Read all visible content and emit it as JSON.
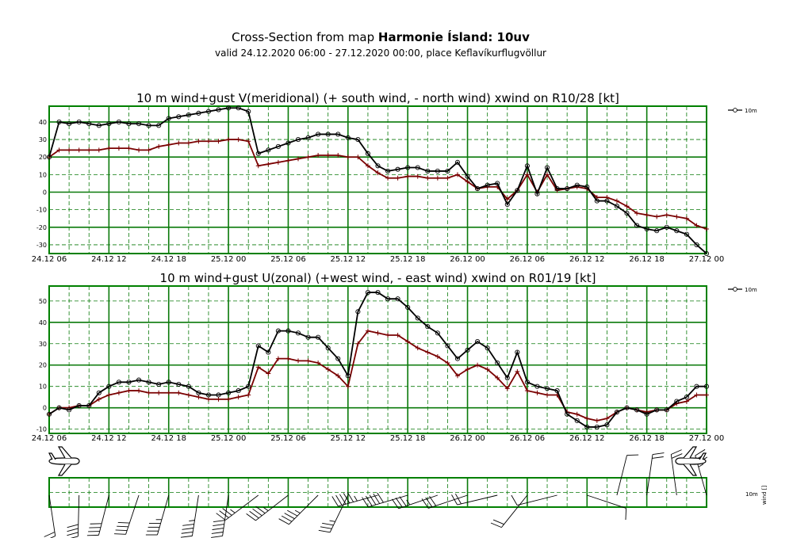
{
  "header": {
    "title_prefix": "Cross-Section from map",
    "title_map": "Harmonie Ísland: 10uv",
    "subtitle": "valid 24.12.2020 06:00 - 27.12.2020 00:00, place Keflavíkurflugvöllur"
  },
  "icons": {
    "plane": "airplane-icon",
    "barb": "wind-barb-icon"
  },
  "colors": {
    "wind": "#000000",
    "gust_axis": "#7a0000",
    "grid": "#0a7a0a",
    "plot_border": "#008000"
  },
  "chart_data": [
    {
      "type": "line",
      "title": "10 m wind+gust V(meridional) (+ south wind, - north wind) xwind on R10/28 [kt]",
      "x_tick_labels": [
        "24.12 06",
        "24.12 12",
        "24.12 18",
        "25.12 00",
        "25.12 06",
        "25.12 12",
        "25.12 18",
        "26.12 00",
        "26.12 06",
        "26.12 12",
        "26.12 18",
        "27.12 00"
      ],
      "xlim": [
        0,
        66
      ],
      "ylim": [
        -35,
        49
      ],
      "y_ticks": [
        -30,
        -20,
        -10,
        0,
        10,
        20,
        30,
        40
      ],
      "grid": true,
      "legend": "top-right",
      "legend_label": "10m",
      "series": [
        {
          "name": "10m",
          "values": [
            20,
            40,
            39,
            40,
            39,
            38,
            39,
            40,
            39,
            39,
            38,
            38,
            42,
            43,
            44,
            45,
            46,
            47,
            48,
            48,
            46,
            22,
            24,
            26,
            28,
            30,
            31,
            33,
            33,
            33,
            31,
            30,
            22,
            15,
            12,
            13,
            14,
            14,
            12,
            12,
            12,
            17,
            9,
            2,
            4,
            5,
            -7,
            1,
            15,
            -1,
            14,
            2,
            2,
            4,
            3,
            -5,
            -5,
            -8,
            -12,
            -19,
            -21,
            -22,
            -20,
            -22,
            -24,
            -30,
            -35
          ]
        },
        {
          "values": [
            20,
            24,
            24,
            24,
            24,
            24,
            25,
            25,
            25,
            24,
            24,
            26,
            27,
            28,
            28,
            29,
            29,
            29,
            30,
            30,
            29,
            15,
            16,
            17,
            18,
            19,
            20,
            21,
            21,
            21,
            20,
            20,
            15,
            11,
            8,
            8,
            9,
            9,
            8,
            8,
            8,
            10,
            6,
            2,
            3,
            3,
            -4,
            1,
            10,
            0,
            10,
            1,
            2,
            3,
            2,
            -3,
            -3,
            -5,
            -8,
            -12,
            -13,
            -14,
            -13,
            -14,
            -15,
            -19,
            -21
          ]
        }
      ]
    },
    {
      "type": "line",
      "title": "10 m wind+gust U(zonal) (+west wind, - east wind) xwind on R01/19 [kt]",
      "x_tick_labels": [
        "24.12 06",
        "24.12 12",
        "24.12 18",
        "25.12 00",
        "25.12 06",
        "25.12 12",
        "25.12 18",
        "26.12 00",
        "26.12 06",
        "26.12 12",
        "26.12 18",
        "27.12 00"
      ],
      "xlim": [
        0,
        66
      ],
      "ylim": [
        -12,
        57
      ],
      "y_ticks": [
        -10,
        0,
        10,
        20,
        30,
        40,
        50
      ],
      "grid": true,
      "legend": "top-right",
      "legend_label": "10m",
      "series": [
        {
          "name": "10m",
          "values": [
            -3,
            0,
            -1,
            1,
            1,
            7,
            10,
            12,
            12,
            13,
            12,
            11,
            12,
            11,
            10,
            7,
            6,
            6,
            7,
            8,
            10,
            29,
            26,
            36,
            36,
            35,
            33,
            33,
            28,
            23,
            15,
            45,
            54,
            54,
            51,
            51,
            47,
            42,
            38,
            35,
            29,
            23,
            27,
            31,
            28,
            21,
            14,
            26,
            12,
            10,
            9,
            8,
            -3,
            -6,
            -9,
            -9,
            -8,
            -2,
            0,
            -1,
            -3,
            -1,
            -1,
            3,
            5,
            10,
            10
          ]
        },
        {
          "values": [
            -3,
            0,
            0,
            1,
            1,
            4,
            6,
            7,
            8,
            8,
            7,
            7,
            7,
            7,
            6,
            5,
            4,
            4,
            4,
            5,
            6,
            19,
            16,
            23,
            23,
            22,
            22,
            21,
            18,
            15,
            10,
            30,
            36,
            35,
            34,
            34,
            31,
            28,
            26,
            24,
            21,
            15,
            18,
            20,
            18,
            14,
            9,
            17,
            8,
            7,
            6,
            6,
            -2,
            -3,
            -5,
            -6,
            -5,
            -2,
            0,
            -1,
            -2,
            -1,
            -1,
            2,
            3,
            6,
            6
          ]
        }
      ]
    }
  ],
  "wind_panel": {
    "x_tick_labels": [
      "24.12 06",
      "24.12 12",
      "24.12 18",
      "25.12 00",
      "25.12 06",
      "25.12 12",
      "25.12 18",
      "26.12 00",
      "26.12 06",
      "26.12 12",
      "26.12 18",
      "27.12 00"
    ],
    "legend_label": "10m",
    "axis_label": "wind []"
  }
}
